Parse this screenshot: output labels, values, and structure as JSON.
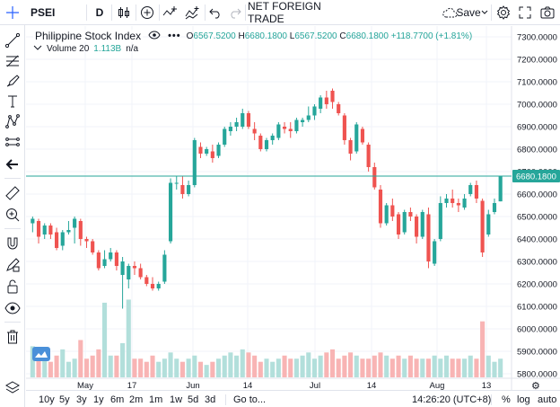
{
  "toolbar": {
    "symbol": "PSEI",
    "interval": "D",
    "indicator_name": "NET FOREIGN TRADE",
    "save_label": "Save",
    "icons": [
      "candles-icon",
      "add-symbol-icon",
      "indicators-icon",
      "undo-icon",
      "redo-icon",
      "cloud-save-icon",
      "chevron-down-icon",
      "settings-icon",
      "fullscreen-icon",
      "camera-icon"
    ]
  },
  "left_toolbar": {
    "icons": [
      "crosshair-icon",
      "trend-line-icon",
      "fib-icon",
      "brush-icon",
      "text-icon",
      "pattern-icon",
      "measure-icon",
      "arrow-back-icon",
      "ruler-icon",
      "zoom-in-icon",
      "magnet-icon",
      "lock-drawing-icon",
      "lock-icon",
      "eye-icon",
      "trash-icon",
      "layers-icon"
    ]
  },
  "legend": {
    "symbol_name": "Philippine Stock Index",
    "o_label": "O",
    "o_value": "6567.5200",
    "h_label": "H",
    "h_value": "6680.1800",
    "l_label": "L",
    "l_value": "6567.5200",
    "c_label": "C",
    "c_value": "6680.1800",
    "change": "+118.7700 (+1.81%)",
    "volume_label": "Volume 20",
    "volume_value": "1.113B",
    "volume_extra": "n/a"
  },
  "colors": {
    "up": "#26a69a",
    "down": "#ef5350",
    "vol_up": "#b2dfdb",
    "vol_down": "#f8b4b4",
    "last_price_line": "#26a69a"
  },
  "last_price_label": "6680.1800",
  "bottom_bar": {
    "ranges": [
      "10y",
      "5y",
      "3y",
      "1y",
      "6m",
      "2m",
      "1m",
      "1w",
      "5d",
      "3d"
    ],
    "goto": "Go to...",
    "clock": "14:26:20 (UTC+8)",
    "percent": "%",
    "log": "log",
    "auto": "auto"
  },
  "chart_data": {
    "type": "candlestick",
    "y_ticks": [
      "7300.0000",
      "7200.0000",
      "7100.0000",
      "7000.0000",
      "6900.0000",
      "6800.0000",
      "6700.0000",
      "6600.0000",
      "6500.0000",
      "6400.0000",
      "6300.0000",
      "6200.0000",
      "6100.0000",
      "6000.0000",
      "5900.0000",
      "5800.0000"
    ],
    "ylim": [
      5780,
      7340
    ],
    "x_ticks": [
      "May",
      "17",
      "Jun",
      "14",
      "Jul",
      "14",
      "Aug",
      "13"
    ],
    "grid": true,
    "candles": [
      {
        "o": 6470,
        "h": 6500,
        "l": 6430,
        "c": 6490,
        "v": 0.5
      },
      {
        "o": 6480,
        "h": 6490,
        "l": 6380,
        "c": 6410,
        "v": 0.4
      },
      {
        "o": 6420,
        "h": 6470,
        "l": 6400,
        "c": 6460,
        "v": 0.3
      },
      {
        "o": 6460,
        "h": 6470,
        "l": 6400,
        "c": 6420,
        "v": 0.25
      },
      {
        "o": 6430,
        "h": 6450,
        "l": 6350,
        "c": 6360,
        "v": 0.35
      },
      {
        "o": 6370,
        "h": 6440,
        "l": 6350,
        "c": 6430,
        "v": 0.45
      },
      {
        "o": 6430,
        "h": 6480,
        "l": 6420,
        "c": 6440,
        "v": 0.25
      },
      {
        "o": 6450,
        "h": 6500,
        "l": 6380,
        "c": 6490,
        "v": 0.3
      },
      {
        "o": 6480,
        "h": 6490,
        "l": 6370,
        "c": 6400,
        "v": 0.6
      },
      {
        "o": 6400,
        "h": 6410,
        "l": 6360,
        "c": 6390,
        "v": 0.3
      },
      {
        "o": 6390,
        "h": 6400,
        "l": 6330,
        "c": 6340,
        "v": 0.35
      },
      {
        "o": 6340,
        "h": 6350,
        "l": 6260,
        "c": 6270,
        "v": 0.45
      },
      {
        "o": 6280,
        "h": 6350,
        "l": 6270,
        "c": 6310,
        "v": 1.2
      },
      {
        "o": 6310,
        "h": 6360,
        "l": 6300,
        "c": 6340,
        "v": 0.35
      },
      {
        "o": 6340,
        "h": 6350,
        "l": 6260,
        "c": 6280,
        "v": 0.35
      },
      {
        "o": 6240,
        "h": 6320,
        "l": 6090,
        "c": 6300,
        "v": 0.55
      },
      {
        "o": 6220,
        "h": 6290,
        "l": 6180,
        "c": 6280,
        "v": 1.25
      },
      {
        "o": 6280,
        "h": 6300,
        "l": 6240,
        "c": 6270,
        "v": 0.3
      },
      {
        "o": 6270,
        "h": 6290,
        "l": 6220,
        "c": 6230,
        "v": 0.3
      },
      {
        "o": 6230,
        "h": 6240,
        "l": 6190,
        "c": 6200,
        "v": 0.25
      },
      {
        "o": 6200,
        "h": 6230,
        "l": 6170,
        "c": 6180,
        "v": 0.35
      },
      {
        "o": 6180,
        "h": 6210,
        "l": 6170,
        "c": 6200,
        "v": 0.25
      },
      {
        "o": 6210,
        "h": 6350,
        "l": 6200,
        "c": 6330,
        "v": 0.3
      },
      {
        "o": 6390,
        "h": 6670,
        "l": 6380,
        "c": 6650,
        "v": 0.4
      },
      {
        "o": 6650,
        "h": 6680,
        "l": 6620,
        "c": 6650,
        "v": 0.3
      },
      {
        "o": 6640,
        "h": 6680,
        "l": 6580,
        "c": 6600,
        "v": 0.25
      },
      {
        "o": 6600,
        "h": 6660,
        "l": 6590,
        "c": 6640,
        "v": 0.3
      },
      {
        "o": 6640,
        "h": 6850,
        "l": 6630,
        "c": 6840,
        "v": 0.35
      },
      {
        "o": 6810,
        "h": 6830,
        "l": 6760,
        "c": 6780,
        "v": 0.25
      },
      {
        "o": 6780,
        "h": 6810,
        "l": 6770,
        "c": 6800,
        "v": 0.2
      },
      {
        "o": 6790,
        "h": 6820,
        "l": 6740,
        "c": 6760,
        "v": 0.25
      },
      {
        "o": 6770,
        "h": 6830,
        "l": 6760,
        "c": 6820,
        "v": 0.3
      },
      {
        "o": 6820,
        "h": 6900,
        "l": 6810,
        "c": 6890,
        "v": 0.35
      },
      {
        "o": 6880,
        "h": 6920,
        "l": 6860,
        "c": 6900,
        "v": 0.4
      },
      {
        "o": 6900,
        "h": 6940,
        "l": 6880,
        "c": 6920,
        "v": 0.35
      },
      {
        "o": 6900,
        "h": 6980,
        "l": 6890,
        "c": 6960,
        "v": 0.45
      },
      {
        "o": 6960,
        "h": 6970,
        "l": 6890,
        "c": 6900,
        "v": 0.4
      },
      {
        "o": 6890,
        "h": 6920,
        "l": 6840,
        "c": 6870,
        "v": 0.35
      },
      {
        "o": 6860,
        "h": 6870,
        "l": 6790,
        "c": 6800,
        "v": 0.25
      },
      {
        "o": 6800,
        "h": 6850,
        "l": 6790,
        "c": 6840,
        "v": 0.3
      },
      {
        "o": 6840,
        "h": 6870,
        "l": 6820,
        "c": 6860,
        "v": 0.25
      },
      {
        "o": 6850,
        "h": 6920,
        "l": 6840,
        "c": 6910,
        "v": 0.3
      },
      {
        "o": 6900,
        "h": 6920,
        "l": 6870,
        "c": 6890,
        "v": 0.35
      },
      {
        "o": 6890,
        "h": 6920,
        "l": 6850,
        "c": 6880,
        "v": 0.3
      },
      {
        "o": 6880,
        "h": 6940,
        "l": 6870,
        "c": 6930,
        "v": 0.3
      },
      {
        "o": 6920,
        "h": 6940,
        "l": 6900,
        "c": 6930,
        "v": 0.35
      },
      {
        "o": 6930,
        "h": 6990,
        "l": 6920,
        "c": 6950,
        "v": 0.4
      },
      {
        "o": 6950,
        "h": 7000,
        "l": 6930,
        "c": 6990,
        "v": 0.3
      },
      {
        "o": 6980,
        "h": 7040,
        "l": 6960,
        "c": 7030,
        "v": 0.35
      },
      {
        "o": 7030,
        "h": 7060,
        "l": 6980,
        "c": 7000,
        "v": 0.4
      },
      {
        "o": 7060,
        "h": 7070,
        "l": 6980,
        "c": 7010,
        "v": 0.45
      },
      {
        "o": 7000,
        "h": 7010,
        "l": 6950,
        "c": 6960,
        "v": 0.3
      },
      {
        "o": 6950,
        "h": 6960,
        "l": 6820,
        "c": 6840,
        "v": 0.35
      },
      {
        "o": 6840,
        "h": 6850,
        "l": 6750,
        "c": 6780,
        "v": 0.4
      },
      {
        "o": 6790,
        "h": 6920,
        "l": 6780,
        "c": 6910,
        "v": 0.35
      },
      {
        "o": 6890,
        "h": 6900,
        "l": 6820,
        "c": 6830,
        "v": 0.3
      },
      {
        "o": 6820,
        "h": 6830,
        "l": 6700,
        "c": 6720,
        "v": 0.3
      },
      {
        "o": 6720,
        "h": 6740,
        "l": 6620,
        "c": 6630,
        "v": 0.35
      },
      {
        "o": 6620,
        "h": 6640,
        "l": 6450,
        "c": 6470,
        "v": 0.4
      },
      {
        "o": 6470,
        "h": 6560,
        "l": 6460,
        "c": 6550,
        "v": 0.35
      },
      {
        "o": 6550,
        "h": 6580,
        "l": 6480,
        "c": 6500,
        "v": 0.3
      },
      {
        "o": 6510,
        "h": 6520,
        "l": 6400,
        "c": 6420,
        "v": 0.35
      },
      {
        "o": 6430,
        "h": 6530,
        "l": 6420,
        "c": 6520,
        "v": 0.3
      },
      {
        "o": 6520,
        "h": 6540,
        "l": 6480,
        "c": 6500,
        "v": 0.35
      },
      {
        "o": 6500,
        "h": 6510,
        "l": 6380,
        "c": 6410,
        "v": 0.3
      },
      {
        "o": 6410,
        "h": 6530,
        "l": 6400,
        "c": 6520,
        "v": 0.3
      },
      {
        "o": 6510,
        "h": 6540,
        "l": 6270,
        "c": 6300,
        "v": 0.3
      },
      {
        "o": 6290,
        "h": 6400,
        "l": 6280,
        "c": 6390,
        "v": 0.35
      },
      {
        "o": 6400,
        "h": 6590,
        "l": 6390,
        "c": 6560,
        "v": 0.3
      },
      {
        "o": 6560,
        "h": 6600,
        "l": 6540,
        "c": 6580,
        "v": 0.35
      },
      {
        "o": 6580,
        "h": 6620,
        "l": 6540,
        "c": 6560,
        "v": 0.3
      },
      {
        "o": 6560,
        "h": 6580,
        "l": 6520,
        "c": 6550,
        "v": 0.3
      },
      {
        "o": 6540,
        "h": 6600,
        "l": 6530,
        "c": 6580,
        "v": 0.3
      },
      {
        "o": 6600,
        "h": 6650,
        "l": 6590,
        "c": 6640,
        "v": 0.35
      },
      {
        "o": 6640,
        "h": 6660,
        "l": 6560,
        "c": 6580,
        "v": 0.3
      },
      {
        "o": 6570,
        "h": 6580,
        "l": 6320,
        "c": 6340,
        "v": 0.9
      },
      {
        "o": 6420,
        "h": 6530,
        "l": 6410,
        "c": 6510,
        "v": 0.35
      },
      {
        "o": 6520,
        "h": 6580,
        "l": 6510,
        "c": 6560,
        "v": 0.25
      },
      {
        "o": 6567.52,
        "h": 6680.18,
        "l": 6567.52,
        "c": 6680.18,
        "v": 0.3
      }
    ]
  }
}
